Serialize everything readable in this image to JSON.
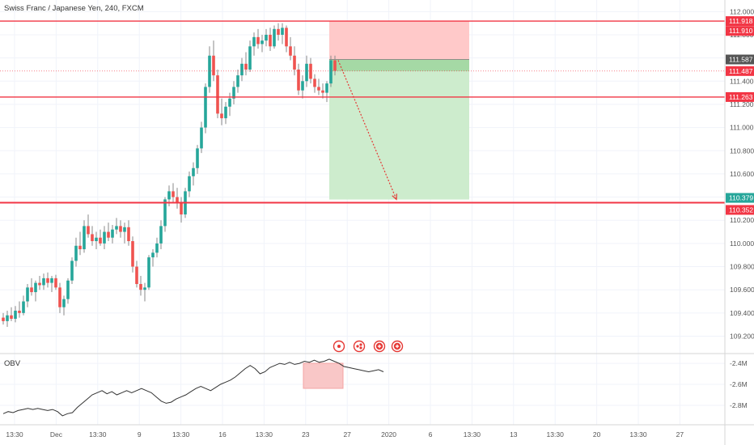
{
  "chart_data": {
    "type": "candlestick",
    "title": "Swiss Franc / Japanese Yen, 240, FXCM",
    "y_axis": {
      "ticks": [
        "112.000",
        "111.800",
        "111.600",
        "111.400",
        "111.200",
        "111.000",
        "110.800",
        "110.600",
        "110.400",
        "110.200",
        "110.000",
        "109.800",
        "109.600",
        "109.400",
        "109.200"
      ],
      "range": [
        109.05,
        112.1
      ]
    },
    "x_axis": {
      "ticks": [
        "13:30",
        "Dec",
        "13:30",
        "9",
        "13:30",
        "16",
        "13:30",
        "23",
        "27",
        "2020",
        "6",
        "13:30",
        "13",
        "13:30",
        "20",
        "13:30",
        "27"
      ]
    },
    "price_levels": [
      {
        "value": 111.918,
        "label": "111.918",
        "color": "#f23645"
      },
      {
        "value": 111.263,
        "label": "111.263",
        "color": "#f23645"
      },
      {
        "value": 110.352,
        "label": "110.352",
        "color": "#f23645"
      }
    ],
    "price_tags": [
      {
        "value": 111.918,
        "label": "111.918",
        "color": "#f23645"
      },
      {
        "value": 111.91,
        "label": "111.910",
        "color": "#f23645"
      },
      {
        "value": 111.587,
        "label": "111.587",
        "color": "#555555"
      },
      {
        "value": 111.487,
        "label": "111.487",
        "color": "#f23645"
      },
      {
        "value": 111.263,
        "label": "111.263",
        "color": "#f23645"
      },
      {
        "value": 110.379,
        "label": "110.379",
        "color": "#26a69a"
      },
      {
        "value": 110.352,
        "label": "110.352",
        "color": "#f23645"
      }
    ],
    "position": {
      "entry": 111.587,
      "stop": 111.918,
      "target": 110.379,
      "current": 111.487,
      "stop_zone_color": "#ffc9c9",
      "target_zone_color": "#cdeccd",
      "open_pnl_color": "#a5d9a5"
    },
    "candles": [
      {
        "o": 109.36,
        "h": 109.4,
        "l": 109.3,
        "c": 109.33
      },
      {
        "o": 109.33,
        "h": 109.42,
        "l": 109.28,
        "c": 109.38
      },
      {
        "o": 109.38,
        "h": 109.45,
        "l": 109.33,
        "c": 109.35
      },
      {
        "o": 109.35,
        "h": 109.46,
        "l": 109.32,
        "c": 109.42
      },
      {
        "o": 109.42,
        "h": 109.5,
        "l": 109.36,
        "c": 109.4
      },
      {
        "o": 109.4,
        "h": 109.55,
        "l": 109.38,
        "c": 109.5
      },
      {
        "o": 109.5,
        "h": 109.65,
        "l": 109.45,
        "c": 109.62
      },
      {
        "o": 109.62,
        "h": 109.7,
        "l": 109.55,
        "c": 109.58
      },
      {
        "o": 109.58,
        "h": 109.68,
        "l": 109.5,
        "c": 109.66
      },
      {
        "o": 109.66,
        "h": 109.72,
        "l": 109.6,
        "c": 109.64
      },
      {
        "o": 109.64,
        "h": 109.74,
        "l": 109.6,
        "c": 109.7
      },
      {
        "o": 109.7,
        "h": 109.75,
        "l": 109.62,
        "c": 109.66
      },
      {
        "o": 109.66,
        "h": 109.72,
        "l": 109.58,
        "c": 109.7
      },
      {
        "o": 109.7,
        "h": 109.73,
        "l": 109.6,
        "c": 109.62
      },
      {
        "o": 109.62,
        "h": 109.66,
        "l": 109.4,
        "c": 109.45
      },
      {
        "o": 109.45,
        "h": 109.55,
        "l": 109.38,
        "c": 109.52
      },
      {
        "o": 109.52,
        "h": 109.7,
        "l": 109.48,
        "c": 109.68
      },
      {
        "o": 109.68,
        "h": 109.88,
        "l": 109.65,
        "c": 109.85
      },
      {
        "o": 109.85,
        "h": 110.05,
        "l": 109.8,
        "c": 109.98
      },
      {
        "o": 109.98,
        "h": 110.1,
        "l": 109.9,
        "c": 109.95
      },
      {
        "o": 109.95,
        "h": 110.2,
        "l": 109.92,
        "c": 110.15
      },
      {
        "o": 110.15,
        "h": 110.25,
        "l": 110.05,
        "c": 110.08
      },
      {
        "o": 110.08,
        "h": 110.15,
        "l": 109.98,
        "c": 110.02
      },
      {
        "o": 110.02,
        "h": 110.1,
        "l": 109.95,
        "c": 110.05
      },
      {
        "o": 110.05,
        "h": 110.12,
        "l": 109.98,
        "c": 110.0
      },
      {
        "o": 110.0,
        "h": 110.15,
        "l": 109.95,
        "c": 110.1
      },
      {
        "o": 110.1,
        "h": 110.18,
        "l": 110.02,
        "c": 110.05
      },
      {
        "o": 110.05,
        "h": 110.16,
        "l": 110.0,
        "c": 110.12
      },
      {
        "o": 110.12,
        "h": 110.22,
        "l": 110.08,
        "c": 110.15
      },
      {
        "o": 110.15,
        "h": 110.2,
        "l": 110.05,
        "c": 110.1
      },
      {
        "o": 110.1,
        "h": 110.18,
        "l": 110.0,
        "c": 110.14
      },
      {
        "o": 110.14,
        "h": 110.2,
        "l": 109.98,
        "c": 110.02
      },
      {
        "o": 110.02,
        "h": 110.06,
        "l": 109.75,
        "c": 109.8
      },
      {
        "o": 109.8,
        "h": 109.85,
        "l": 109.62,
        "c": 109.65
      },
      {
        "o": 109.65,
        "h": 109.72,
        "l": 109.55,
        "c": 109.6
      },
      {
        "o": 109.6,
        "h": 109.66,
        "l": 109.5,
        "c": 109.62
      },
      {
        "o": 109.62,
        "h": 109.9,
        "l": 109.6,
        "c": 109.88
      },
      {
        "o": 109.88,
        "h": 109.95,
        "l": 109.8,
        "c": 109.92
      },
      {
        "o": 109.92,
        "h": 110.05,
        "l": 109.88,
        "c": 110.0
      },
      {
        "o": 110.0,
        "h": 110.2,
        "l": 109.95,
        "c": 110.15
      },
      {
        "o": 110.15,
        "h": 110.4,
        "l": 110.1,
        "c": 110.38
      },
      {
        "o": 110.38,
        "h": 110.5,
        "l": 110.32,
        "c": 110.45
      },
      {
        "o": 110.45,
        "h": 110.52,
        "l": 110.35,
        "c": 110.4
      },
      {
        "o": 110.4,
        "h": 110.48,
        "l": 110.3,
        "c": 110.35
      },
      {
        "o": 110.35,
        "h": 110.4,
        "l": 110.18,
        "c": 110.25
      },
      {
        "o": 110.25,
        "h": 110.48,
        "l": 110.22,
        "c": 110.45
      },
      {
        "o": 110.45,
        "h": 110.62,
        "l": 110.4,
        "c": 110.58
      },
      {
        "o": 110.58,
        "h": 110.7,
        "l": 110.5,
        "c": 110.65
      },
      {
        "o": 110.65,
        "h": 110.85,
        "l": 110.6,
        "c": 110.82
      },
      {
        "o": 110.82,
        "h": 111.05,
        "l": 110.78,
        "c": 111.0
      },
      {
        "o": 111.0,
        "h": 111.38,
        "l": 110.95,
        "c": 111.35
      },
      {
        "o": 111.35,
        "h": 111.7,
        "l": 111.3,
        "c": 111.62
      },
      {
        "o": 111.62,
        "h": 111.75,
        "l": 111.4,
        "c": 111.45
      },
      {
        "o": 111.45,
        "h": 111.5,
        "l": 111.08,
        "c": 111.12
      },
      {
        "o": 111.12,
        "h": 111.25,
        "l": 111.02,
        "c": 111.08
      },
      {
        "o": 111.08,
        "h": 111.22,
        "l": 111.03,
        "c": 111.18
      },
      {
        "o": 111.18,
        "h": 111.3,
        "l": 111.1,
        "c": 111.25
      },
      {
        "o": 111.25,
        "h": 111.4,
        "l": 111.2,
        "c": 111.35
      },
      {
        "o": 111.35,
        "h": 111.5,
        "l": 111.3,
        "c": 111.45
      },
      {
        "o": 111.45,
        "h": 111.6,
        "l": 111.4,
        "c": 111.55
      },
      {
        "o": 111.55,
        "h": 111.65,
        "l": 111.45,
        "c": 111.5
      },
      {
        "o": 111.5,
        "h": 111.75,
        "l": 111.48,
        "c": 111.7
      },
      {
        "o": 111.7,
        "h": 111.82,
        "l": 111.62,
        "c": 111.78
      },
      {
        "o": 111.78,
        "h": 111.85,
        "l": 111.68,
        "c": 111.72
      },
      {
        "o": 111.72,
        "h": 111.8,
        "l": 111.65,
        "c": 111.75
      },
      {
        "o": 111.75,
        "h": 111.85,
        "l": 111.7,
        "c": 111.8
      },
      {
        "o": 111.8,
        "h": 111.86,
        "l": 111.66,
        "c": 111.7
      },
      {
        "o": 111.7,
        "h": 111.88,
        "l": 111.68,
        "c": 111.85
      },
      {
        "o": 111.85,
        "h": 111.9,
        "l": 111.75,
        "c": 111.8
      },
      {
        "o": 111.8,
        "h": 111.9,
        "l": 111.72,
        "c": 111.86
      },
      {
        "o": 111.86,
        "h": 111.88,
        "l": 111.65,
        "c": 111.7
      },
      {
        "o": 111.7,
        "h": 111.78,
        "l": 111.58,
        "c": 111.62
      },
      {
        "o": 111.62,
        "h": 111.7,
        "l": 111.45,
        "c": 111.5
      },
      {
        "o": 111.5,
        "h": 111.55,
        "l": 111.28,
        "c": 111.32
      },
      {
        "o": 111.32,
        "h": 111.45,
        "l": 111.25,
        "c": 111.4
      },
      {
        "o": 111.4,
        "h": 111.62,
        "l": 111.35,
        "c": 111.55
      },
      {
        "o": 111.55,
        "h": 111.6,
        "l": 111.38,
        "c": 111.42
      },
      {
        "o": 111.42,
        "h": 111.46,
        "l": 111.3,
        "c": 111.35
      },
      {
        "o": 111.35,
        "h": 111.42,
        "l": 111.28,
        "c": 111.32
      },
      {
        "o": 111.32,
        "h": 111.38,
        "l": 111.25,
        "c": 111.3
      },
      {
        "o": 111.3,
        "h": 111.4,
        "l": 111.22,
        "c": 111.38
      },
      {
        "o": 111.38,
        "h": 111.62,
        "l": 111.35,
        "c": 111.58
      },
      {
        "o": 111.58,
        "h": 111.62,
        "l": 111.45,
        "c": 111.49
      }
    ],
    "indicator": {
      "name": "OBV",
      "ticks": [
        "-2.4M",
        "-2.6M",
        "-2.8M"
      ],
      "range": [
        -2.97,
        -2.33
      ],
      "values": [
        -2.88,
        -2.86,
        -2.87,
        -2.85,
        -2.84,
        -2.83,
        -2.84,
        -2.83,
        -2.84,
        -2.85,
        -2.84,
        -2.86,
        -2.9,
        -2.88,
        -2.87,
        -2.82,
        -2.78,
        -2.74,
        -2.7,
        -2.68,
        -2.66,
        -2.69,
        -2.67,
        -2.7,
        -2.68,
        -2.66,
        -2.68,
        -2.66,
        -2.64,
        -2.66,
        -2.68,
        -2.72,
        -2.76,
        -2.78,
        -2.77,
        -2.74,
        -2.72,
        -2.7,
        -2.67,
        -2.64,
        -2.62,
        -2.64,
        -2.66,
        -2.63,
        -2.6,
        -2.58,
        -2.56,
        -2.53,
        -2.49,
        -2.45,
        -2.42,
        -2.45,
        -2.5,
        -2.48,
        -2.44,
        -2.42,
        -2.4,
        -2.41,
        -2.39,
        -2.41,
        -2.4,
        -2.38,
        -2.39,
        -2.37,
        -2.39,
        -2.38,
        -2.36,
        -2.38,
        -2.4,
        -2.43,
        -2.44,
        -2.45,
        -2.46,
        -2.47,
        -2.48,
        -2.47,
        -2.46,
        -2.48
      ],
      "highlight_color": "#f4a3a3"
    },
    "toolbar_icons": [
      "replay-icon",
      "replay-options-icon",
      "add-alert-icon",
      "add-icon"
    ]
  }
}
